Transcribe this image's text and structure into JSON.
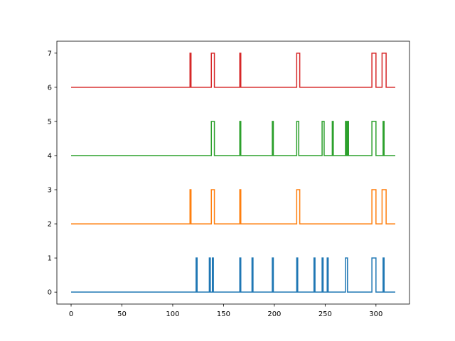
{
  "chart_data": {
    "type": "line",
    "title": "",
    "xlabel": "",
    "ylabel": "",
    "xlim": [
      -14,
      333
    ],
    "ylim": [
      -0.35,
      7.35
    ],
    "xticks": [
      0,
      50,
      100,
      150,
      200,
      250,
      300
    ],
    "yticks": [
      0,
      1,
      2,
      3,
      4,
      5,
      6,
      7
    ],
    "grid": false,
    "legend": "none",
    "x_start": 0,
    "x_end": 319,
    "series": [
      {
        "color": "#1f77b4",
        "baseline": 0,
        "pulse_height": 1,
        "pulses": [
          [
            123,
            124
          ],
          [
            136,
            137
          ],
          [
            139,
            140
          ],
          [
            166,
            167
          ],
          [
            178,
            179
          ],
          [
            198,
            199
          ],
          [
            222,
            223
          ],
          [
            239,
            240
          ],
          [
            247,
            248
          ],
          [
            252,
            253
          ],
          [
            270,
            272
          ],
          [
            296,
            300
          ],
          [
            307,
            308
          ]
        ]
      },
      {
        "color": "#ff7f0e",
        "baseline": 2,
        "pulse_height": 1,
        "pulses": [
          [
            117,
            118
          ],
          [
            138,
            141
          ],
          [
            166,
            167
          ],
          [
            222,
            225
          ],
          [
            296,
            300
          ],
          [
            306,
            310
          ]
        ]
      },
      {
        "color": "#2ca02c",
        "baseline": 4,
        "pulse_height": 1,
        "pulses": [
          [
            138,
            141
          ],
          [
            166,
            167
          ],
          [
            198,
            199
          ],
          [
            222,
            224
          ],
          [
            247,
            249
          ],
          [
            257,
            258
          ],
          [
            270,
            271
          ],
          [
            272,
            273
          ],
          [
            296,
            300
          ],
          [
            307,
            308
          ]
        ]
      },
      {
        "color": "#d62728",
        "baseline": 6,
        "pulse_height": 1,
        "pulses": [
          [
            117,
            118
          ],
          [
            138,
            141
          ],
          [
            166,
            167
          ],
          [
            222,
            225
          ],
          [
            296,
            300
          ],
          [
            306,
            310
          ]
        ]
      }
    ]
  }
}
